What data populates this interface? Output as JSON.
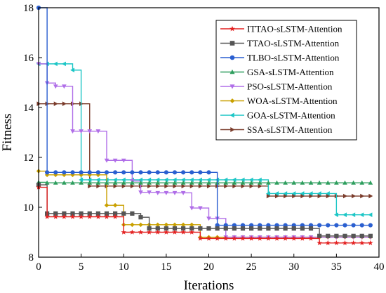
{
  "chart_data": {
    "type": "line",
    "title": "",
    "xlabel": "Iterations",
    "ylabel": "Fitness",
    "xlim": [
      0,
      40
    ],
    "ylim": [
      8,
      18
    ],
    "xticks": [
      0,
      5,
      10,
      15,
      20,
      25,
      30,
      35,
      40
    ],
    "yticks": [
      8,
      10,
      12,
      14,
      16,
      18
    ],
    "grid": false,
    "legend_position": "top-right",
    "iterations": [
      0,
      1,
      2,
      3,
      4,
      5,
      6,
      7,
      8,
      9,
      10,
      11,
      12,
      13,
      14,
      15,
      16,
      17,
      18,
      19,
      20,
      21,
      22,
      23,
      24,
      25,
      26,
      27,
      28,
      29,
      30,
      31,
      32,
      33,
      34,
      35,
      36,
      37,
      38,
      39
    ],
    "series": [
      {
        "name": "ITTAO-sLSTM-Attention",
        "color": "#e32020",
        "marker": "star",
        "values": [
          10.8,
          9.62,
          9.62,
          9.62,
          9.62,
          9.62,
          9.62,
          9.62,
          9.62,
          9.62,
          9.0,
          9.0,
          9.0,
          9.0,
          9.0,
          9.0,
          9.0,
          9.0,
          9.0,
          8.75,
          8.75,
          8.75,
          8.75,
          8.75,
          8.75,
          8.75,
          8.75,
          8.75,
          8.75,
          8.75,
          8.75,
          8.75,
          8.75,
          8.57,
          8.57,
          8.57,
          8.57,
          8.57,
          8.57,
          8.57
        ]
      },
      {
        "name": "TTAO-sLSTM-Attention",
        "color": "#555555",
        "marker": "square",
        "values": [
          10.9,
          9.75,
          9.75,
          9.75,
          9.75,
          9.75,
          9.75,
          9.75,
          9.75,
          9.75,
          9.75,
          9.75,
          9.6,
          9.15,
          9.15,
          9.15,
          9.15,
          9.15,
          9.15,
          9.15,
          9.15,
          9.15,
          9.15,
          9.15,
          9.15,
          9.15,
          9.15,
          9.15,
          9.15,
          9.15,
          9.15,
          9.15,
          9.15,
          8.85,
          8.85,
          8.85,
          8.85,
          8.85,
          8.85,
          8.85
        ]
      },
      {
        "name": "TLBO-sLSTM-Attention",
        "color": "#2a5fd0",
        "marker": "circle",
        "values": [
          18.0,
          11.4,
          11.4,
          11.4,
          11.4,
          11.4,
          11.4,
          11.4,
          11.4,
          11.4,
          11.4,
          11.4,
          11.4,
          11.4,
          11.4,
          11.4,
          11.4,
          11.4,
          11.4,
          11.4,
          11.4,
          9.28,
          9.28,
          9.28,
          9.28,
          9.28,
          9.28,
          9.28,
          9.28,
          9.28,
          9.28,
          9.28,
          9.28,
          9.28,
          9.28,
          9.28,
          9.28,
          9.28,
          9.28,
          9.28
        ]
      },
      {
        "name": "GSA-sLSTM-Attention",
        "color": "#2e9e5e",
        "marker": "triangle-up",
        "values": [
          11.0,
          10.98,
          10.98,
          10.98,
          10.98,
          10.98,
          10.98,
          10.98,
          10.98,
          10.98,
          10.98,
          10.98,
          10.98,
          10.98,
          10.98,
          10.98,
          10.98,
          10.98,
          10.98,
          10.98,
          10.98,
          10.98,
          10.98,
          10.98,
          10.98,
          10.98,
          10.98,
          10.98,
          10.98,
          10.98,
          10.98,
          10.98,
          10.98,
          10.98,
          10.98,
          10.98,
          10.98,
          10.98,
          10.98,
          10.98
        ]
      },
      {
        "name": "PSO-sLSTM-Attention",
        "color": "#b06ee8",
        "marker": "triangle-down",
        "values": [
          15.75,
          14.98,
          14.85,
          14.85,
          13.05,
          13.05,
          13.05,
          13.05,
          11.88,
          11.88,
          11.88,
          11.05,
          10.6,
          10.6,
          10.58,
          10.58,
          10.58,
          10.58,
          9.97,
          9.97,
          9.55,
          9.55,
          8.8,
          8.8,
          8.8,
          8.8,
          8.8,
          8.8,
          8.8,
          8.8,
          8.8,
          8.8,
          8.8,
          8.8,
          8.8,
          8.8,
          8.8,
          8.8,
          8.8,
          8.8
        ]
      },
      {
        "name": "WOA-sLSTM-Attention",
        "color": "#c9a000",
        "marker": "diamond",
        "values": [
          11.45,
          11.3,
          11.3,
          11.3,
          11.3,
          11.3,
          11.3,
          11.3,
          10.08,
          10.08,
          9.3,
          9.3,
          9.3,
          9.3,
          9.3,
          9.3,
          9.3,
          9.3,
          9.3,
          8.8,
          8.8,
          8.8,
          8.8,
          8.8,
          8.8,
          8.8,
          8.8,
          8.8,
          8.8,
          8.8,
          8.8,
          8.8,
          8.8,
          8.8,
          8.8,
          8.8,
          8.8,
          8.8,
          8.8,
          8.8
        ]
      },
      {
        "name": "GOA-sLSTM-Attention",
        "color": "#1cc6c6",
        "marker": "triangle-left",
        "values": [
          15.75,
          15.75,
          15.75,
          15.75,
          15.5,
          11.1,
          11.1,
          11.1,
          11.1,
          11.1,
          11.1,
          11.1,
          11.1,
          11.1,
          11.1,
          11.1,
          11.1,
          11.1,
          11.1,
          11.1,
          11.1,
          11.1,
          11.1,
          11.1,
          11.1,
          11.1,
          11.1,
          10.55,
          10.55,
          10.55,
          10.55,
          10.55,
          10.55,
          10.55,
          10.55,
          9.7,
          9.7,
          9.7,
          9.7,
          9.7
        ]
      },
      {
        "name": "SSA-sLSTM-Attention",
        "color": "#7a3b2a",
        "marker": "triangle-right",
        "values": [
          14.15,
          14.15,
          14.15,
          14.15,
          14.15,
          14.15,
          10.85,
          10.85,
          10.85,
          10.85,
          10.85,
          10.85,
          10.85,
          10.85,
          10.85,
          10.85,
          10.85,
          10.85,
          10.85,
          10.85,
          10.85,
          10.85,
          10.85,
          10.85,
          10.85,
          10.85,
          10.85,
          10.45,
          10.45,
          10.45,
          10.45,
          10.45,
          10.45,
          10.45,
          10.45,
          10.45,
          10.45,
          10.45,
          10.45,
          10.45
        ]
      }
    ]
  }
}
